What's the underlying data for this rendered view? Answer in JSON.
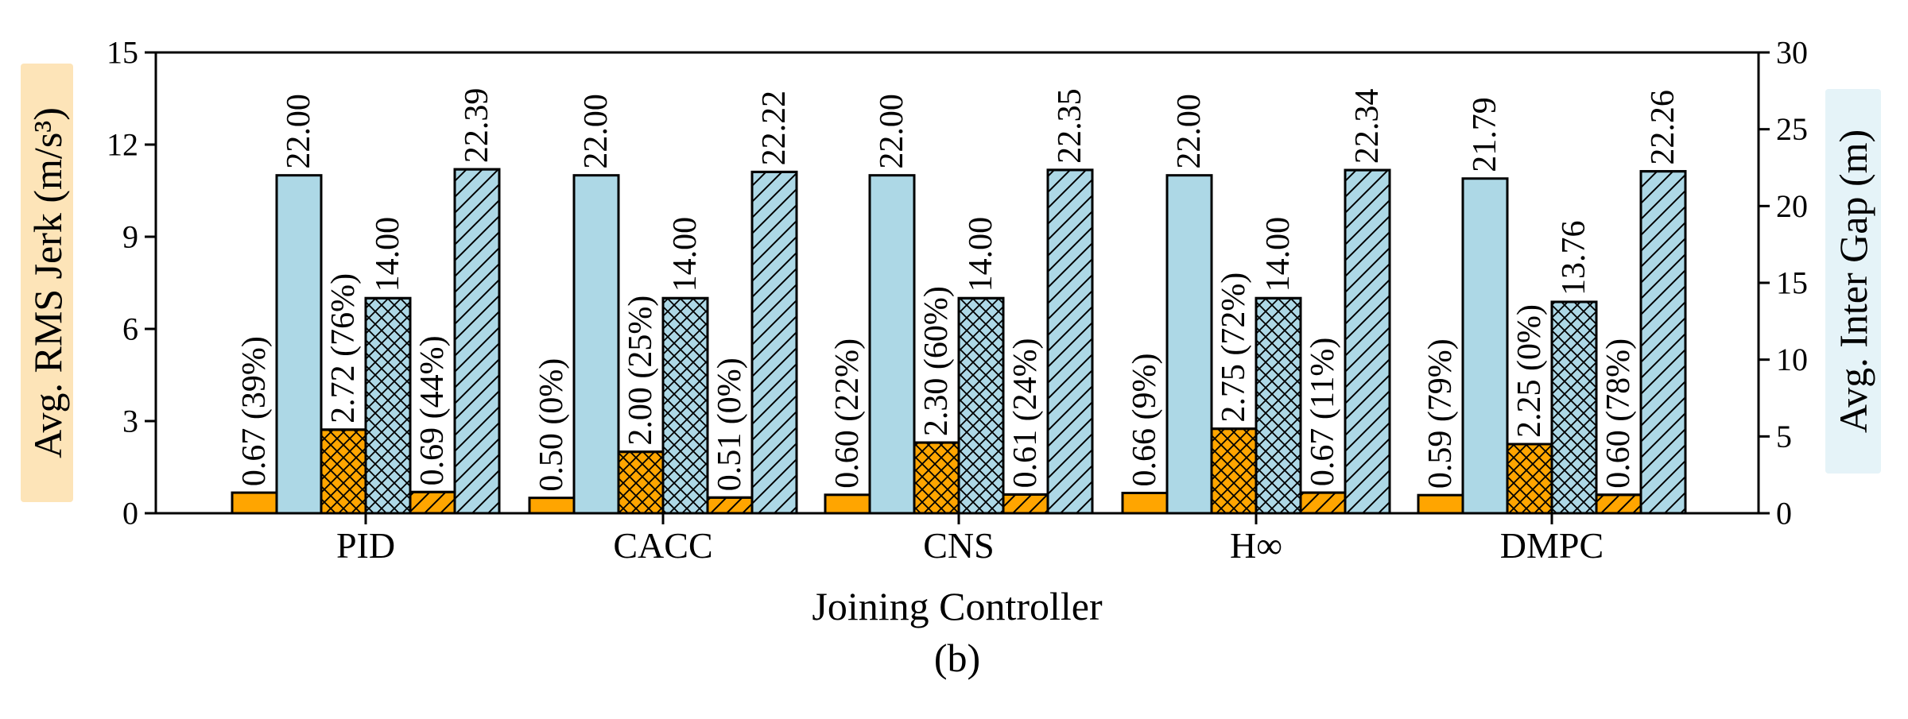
{
  "chart_data": {
    "type": "bar",
    "xlabel": "Joining Controller",
    "caption": "(b)",
    "categories": [
      "PID",
      "CACC",
      "CNS",
      "H∞",
      "DMPC"
    ],
    "left_axis": {
      "label": "Avg. RMS Jerk (m/s³)",
      "ylim": [
        0,
        15
      ],
      "ticks": [
        0,
        3,
        6,
        9,
        12,
        15
      ],
      "label_background": "#fde4b8"
    },
    "right_axis": {
      "label": "Avg. Inter Gap (m)",
      "ylim": [
        0,
        30
      ],
      "ticks": [
        0,
        5,
        10,
        15,
        20,
        25,
        30
      ],
      "label_background": "#e5f3f8"
    },
    "colors": {
      "jerk": "#ffa500",
      "gap": "#add8e6"
    },
    "series": [
      {
        "axis": "left",
        "color": "jerk",
        "hatch": "none",
        "values": [
          0.67,
          0.5,
          0.6,
          0.66,
          0.59
        ],
        "labels": [
          "0.67 (39%)",
          "0.50 (0%)",
          "0.60 (22%)",
          "0.66 (9%)",
          "0.59 (79%)"
        ]
      },
      {
        "axis": "right",
        "color": "gap",
        "hatch": "none",
        "values": [
          22.0,
          22.0,
          22.0,
          22.0,
          21.79
        ],
        "labels": [
          "22.00",
          "22.00",
          "22.00",
          "22.00",
          "21.79"
        ]
      },
      {
        "axis": "left",
        "color": "jerk",
        "hatch": "cross",
        "values": [
          2.72,
          2.0,
          2.3,
          2.75,
          2.25
        ],
        "labels": [
          "2.72 (76%)",
          "2.00 (25%)",
          "2.30 (60%)",
          "2.75 (72%)",
          "2.25 (0%)"
        ]
      },
      {
        "axis": "right",
        "color": "gap",
        "hatch": "cross",
        "values": [
          14.0,
          14.0,
          14.0,
          14.0,
          13.76
        ],
        "labels": [
          "14.00",
          "14.00",
          "14.00",
          "14.00",
          "13.76"
        ]
      },
      {
        "axis": "left",
        "color": "jerk",
        "hatch": "diagonal",
        "values": [
          0.69,
          0.51,
          0.61,
          0.67,
          0.6
        ],
        "labels": [
          "0.69 (44%)",
          "0.51 (0%)",
          "0.61 (24%)",
          "0.67 (11%)",
          "0.60 (78%)"
        ]
      },
      {
        "axis": "right",
        "color": "gap",
        "hatch": "diagonal",
        "values": [
          22.39,
          22.22,
          22.35,
          22.34,
          22.26
        ],
        "labels": [
          "22.39",
          "22.22",
          "22.35",
          "22.34",
          "22.26"
        ]
      }
    ]
  }
}
